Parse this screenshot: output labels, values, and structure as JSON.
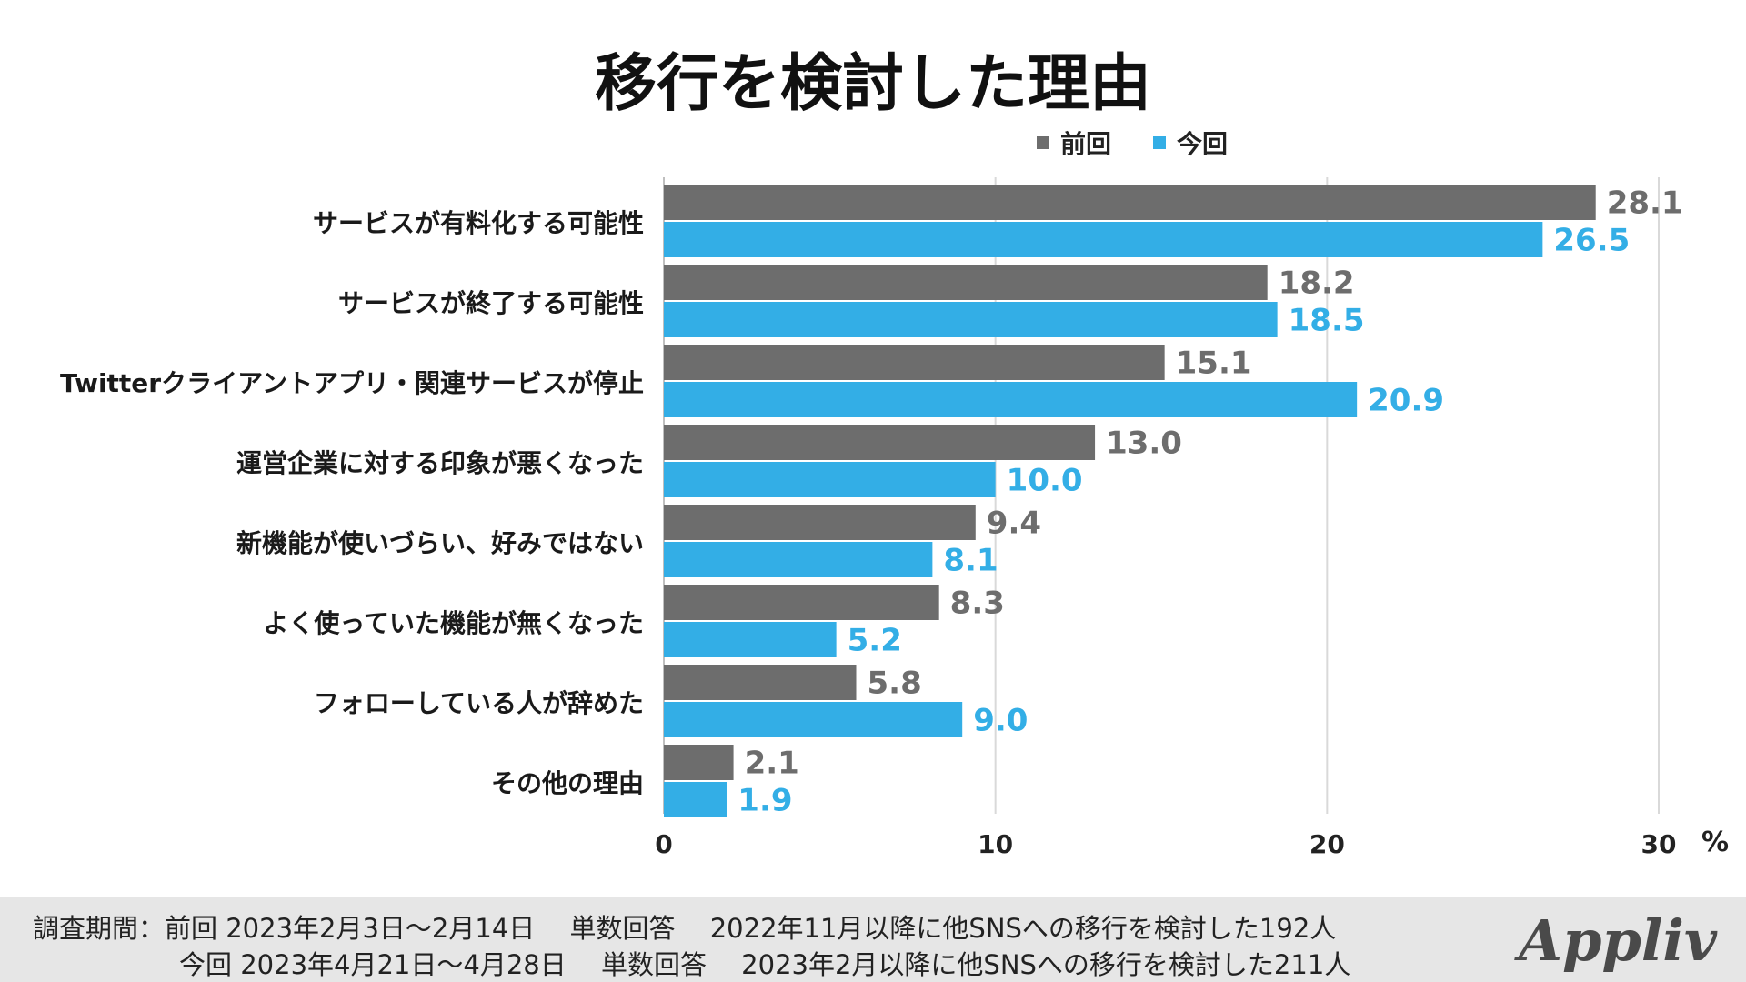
{
  "title": "移行を検討した理由",
  "legend": [
    {
      "name": "前回",
      "color": "#6d6d6d"
    },
    {
      "name": "今回",
      "color": "#33aee6"
    }
  ],
  "chart_data": {
    "type": "bar",
    "orientation": "horizontal",
    "title": "移行を検討した理由",
    "categories": [
      "サービスが有料化する可能性",
      "サービスが終了する可能性",
      "Twitterクライアントアプリ・関連サービスが停止",
      "運営企業に対する印象が悪くなった",
      "新機能が使いづらい、好みではない",
      "よく使っていた機能が無くなった",
      "フォローしている人が辞めた",
      "その他の理由"
    ],
    "series": [
      {
        "name": "前回",
        "color": "#6d6d6d",
        "values": [
          28.1,
          18.2,
          15.1,
          13.0,
          9.4,
          8.3,
          5.8,
          2.1
        ],
        "labels": [
          "28.1",
          "18.2",
          "15.1",
          "13.0",
          "9.4",
          "8.3",
          "5.8",
          "2.1"
        ]
      },
      {
        "name": "今回",
        "color": "#33aee6",
        "values": [
          26.5,
          18.5,
          20.9,
          10.0,
          8.1,
          5.2,
          9.0,
          1.9
        ],
        "labels": [
          "26.5",
          "18.5",
          "20.9",
          "10.0",
          "8.1",
          "5.2",
          "9.0",
          "1.9"
        ]
      }
    ],
    "xlim": [
      0,
      30
    ],
    "xticks": [
      "0",
      "10",
      "20",
      "30"
    ],
    "xlabel": "%",
    "ylabel": "",
    "grid": true,
    "legend_position": "top-right"
  },
  "footer": {
    "line1": "調査期間：前回 2023年2月3日～2月14日　 単数回答　 2022年11月以降に他SNSへの移行を検討した192人",
    "line2": "今回 2023年4月21日～4月28日　 単数回答　 2023年2月以降に他SNSへの移行を検討した211人"
  },
  "logo": "Appliv"
}
